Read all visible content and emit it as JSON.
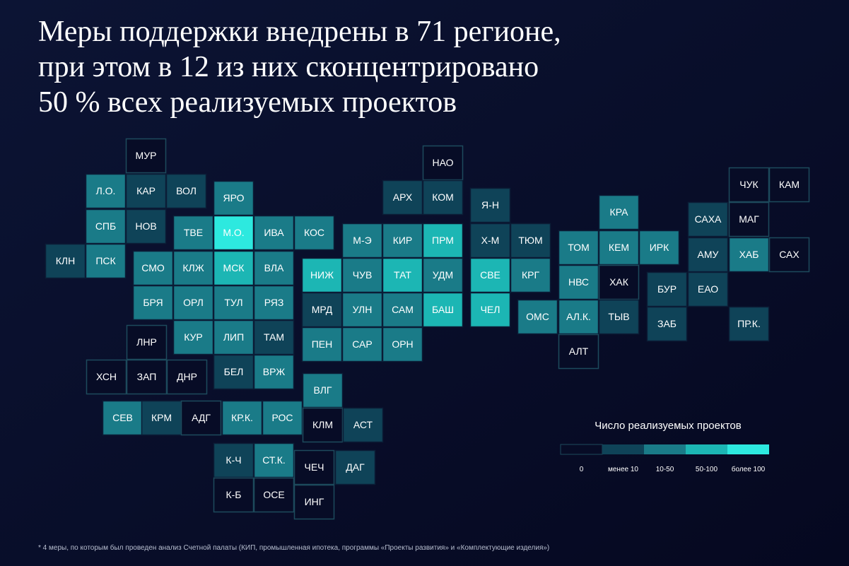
{
  "title_lines": [
    "Меры поддержки внедрены в 71 регионе,",
    "при этом в 12 из них сконцентрировано",
    "50 % всех реализуемых проектов"
  ],
  "tiles": [
    {
      "label": "МУР",
      "level": 0
    },
    {
      "label": "Л.О.",
      "level": 2
    },
    {
      "label": "КАР",
      "level": 1
    },
    {
      "label": "ВОЛ",
      "level": 1
    },
    {
      "label": "СПБ",
      "level": 2
    },
    {
      "label": "НОВ",
      "level": 1
    },
    {
      "label": "КЛН",
      "level": 1
    },
    {
      "label": "ПСК",
      "level": 2
    },
    {
      "label": "ТВЕ",
      "level": 2
    },
    {
      "label": "ЯРО",
      "level": 2
    },
    {
      "label": "М.О.",
      "level": 4
    },
    {
      "label": "ИВА",
      "level": 2
    },
    {
      "label": "КОС",
      "level": 2
    },
    {
      "label": "СМО",
      "level": 2
    },
    {
      "label": "КЛЖ",
      "level": 2
    },
    {
      "label": "МСК",
      "level": 3
    },
    {
      "label": "ВЛА",
      "level": 2
    },
    {
      "label": "БРЯ",
      "level": 2
    },
    {
      "label": "ОРЛ",
      "level": 2
    },
    {
      "label": "ТУЛ",
      "level": 2
    },
    {
      "label": "РЯЗ",
      "level": 2
    },
    {
      "label": "КУР",
      "level": 2
    },
    {
      "label": "ЛИП",
      "level": 2
    },
    {
      "label": "ТАМ",
      "level": 1
    },
    {
      "label": "БЕЛ",
      "level": 1
    },
    {
      "label": "ВРЖ",
      "level": 2
    },
    {
      "label": "ЛНР",
      "level": 0
    },
    {
      "label": "ХСН",
      "level": 0
    },
    {
      "label": "ЗАП",
      "level": 0
    },
    {
      "label": "ДНР",
      "level": 0
    },
    {
      "label": "СЕВ",
      "level": 2
    },
    {
      "label": "КРМ",
      "level": 1
    },
    {
      "label": "АДГ",
      "level": 0
    },
    {
      "label": "КР.К.",
      "level": 2
    },
    {
      "label": "РОС",
      "level": 2
    },
    {
      "label": "К-Ч",
      "level": 1
    },
    {
      "label": "К-Б",
      "level": 0
    },
    {
      "label": "СТ.К.",
      "level": 2
    },
    {
      "label": "ОСЕ",
      "level": 0
    },
    {
      "label": "ЧЕЧ",
      "level": 0
    },
    {
      "label": "ИНГ",
      "level": 0
    },
    {
      "label": "ДАГ",
      "level": 1
    },
    {
      "label": "ВЛГ",
      "level": 2
    },
    {
      "label": "КЛМ",
      "level": 0
    },
    {
      "label": "АСТ",
      "level": 1
    },
    {
      "label": "НИЖ",
      "level": 3
    },
    {
      "label": "МРД",
      "level": 1
    },
    {
      "label": "ПЕН",
      "level": 2
    },
    {
      "label": "М-Э",
      "level": 2
    },
    {
      "label": "ЧУВ",
      "level": 2
    },
    {
      "label": "УЛН",
      "level": 2
    },
    {
      "label": "САР",
      "level": 2
    },
    {
      "label": "КИР",
      "level": 2
    },
    {
      "label": "ТАТ",
      "level": 3
    },
    {
      "label": "САМ",
      "level": 2
    },
    {
      "label": "ОРН",
      "level": 2
    },
    {
      "label": "АРХ",
      "level": 1
    },
    {
      "label": "НАО",
      "level": 0
    },
    {
      "label": "КОМ",
      "level": 1
    },
    {
      "label": "ПРМ",
      "level": 3
    },
    {
      "label": "УДМ",
      "level": 2
    },
    {
      "label": "БАШ",
      "level": 3
    },
    {
      "label": "Я-Н",
      "level": 1
    },
    {
      "label": "Х-М",
      "level": 1
    },
    {
      "label": "СВЕ",
      "level": 3
    },
    {
      "label": "ЧЕЛ",
      "level": 3
    },
    {
      "label": "ТЮМ",
      "level": 1
    },
    {
      "label": "КРГ",
      "level": 2
    },
    {
      "label": "ОМС",
      "level": 2
    },
    {
      "label": "ТОМ",
      "level": 2
    },
    {
      "label": "НВС",
      "level": 2
    },
    {
      "label": "АЛ.К.",
      "level": 2
    },
    {
      "label": "АЛТ",
      "level": 0
    },
    {
      "label": "КРА",
      "level": 2
    },
    {
      "label": "КЕМ",
      "level": 2
    },
    {
      "label": "ИРК",
      "level": 2
    },
    {
      "label": "ХАК",
      "level": 0
    },
    {
      "label": "ТЫВ",
      "level": 1
    },
    {
      "label": "БУР",
      "level": 1
    },
    {
      "label": "ЗАБ",
      "level": 1
    },
    {
      "label": "САХА",
      "level": 1
    },
    {
      "label": "АМУ",
      "level": 1
    },
    {
      "label": "ЕАО",
      "level": 1
    },
    {
      "label": "ЧУК",
      "level": 0
    },
    {
      "label": "КАМ",
      "level": 0
    },
    {
      "label": "МАГ",
      "level": 0
    },
    {
      "label": "ХАБ",
      "level": 2
    },
    {
      "label": "САХ",
      "level": 0
    },
    {
      "label": "ПР.К.",
      "level": 1
    }
  ],
  "legend": {
    "title": "Число реализуемых проектов",
    "items": [
      {
        "label": "0",
        "color": "#070c26"
      },
      {
        "label": "менее 10",
        "color": "#0f4358"
      },
      {
        "label": "10-50",
        "color": "#1a7b88"
      },
      {
        "label": "50-100",
        "color": "#1cb6b4"
      },
      {
        "label": "более 100",
        "color": "#2de9df"
      }
    ]
  },
  "footnote": "* 4 меры, по которым был проведен анализ Счетной палаты (КИП, промышленная ипотека, программы «Проекты развития» и «Комплектующие изделия»)"
}
